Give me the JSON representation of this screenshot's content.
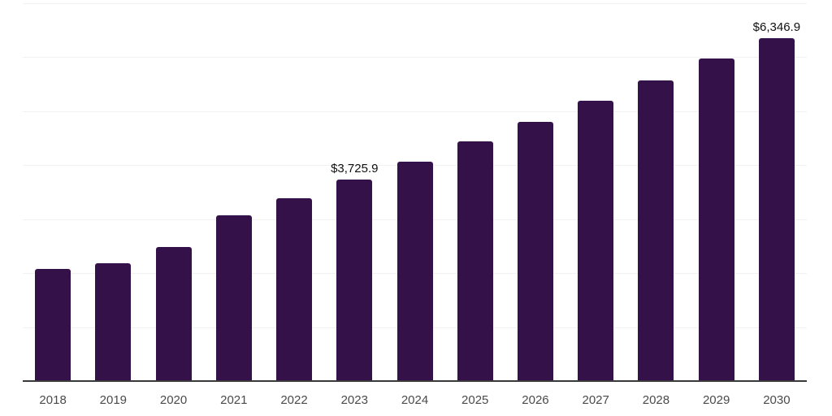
{
  "chart_data": {
    "type": "bar",
    "title": "",
    "xlabel": "",
    "ylabel": "",
    "categories": [
      "2018",
      "2019",
      "2020",
      "2021",
      "2022",
      "2023",
      "2024",
      "2025",
      "2026",
      "2027",
      "2028",
      "2029",
      "2030"
    ],
    "series": [
      {
        "name": "Market value (USD)",
        "values": [
          2070,
          2180,
          2480,
          3075,
          3390,
          3725.9,
          4060,
          4435,
          4800,
          5190,
          5565,
          5970,
          6346.9
        ]
      }
    ],
    "data_labels": {
      "2023": "$3,725.9",
      "2030": "$6,346.9"
    },
    "ylim": [
      0,
      7000
    ],
    "grid_step": 1000,
    "grid": "horizontal",
    "legend_position": "none",
    "colors": {
      "bar": "#351149",
      "gridline": "#f1f1f2",
      "axis": "#3a3a3a",
      "tick_text": "#4a4a4a",
      "label_text": "#111111",
      "background": "#ffffff"
    }
  }
}
